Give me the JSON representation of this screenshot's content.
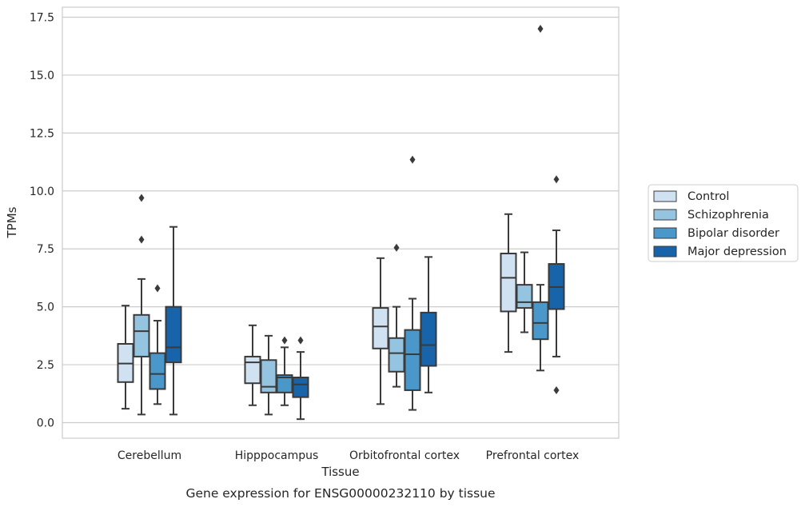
{
  "chart_data": {
    "type": "box",
    "title": "",
    "caption": "Gene expression for ENSG00000232110 by tissue",
    "xlabel": "Tissue",
    "ylabel": "TPMs",
    "ylim": [
      -0.6,
      17.8
    ],
    "yticks": [
      "0.0",
      "2.5",
      "5.0",
      "7.5",
      "10.0",
      "12.5",
      "15.0",
      "17.5"
    ],
    "grid": "horizontal",
    "legend_position": "right",
    "categories": [
      "Cerebellum",
      "Hipppocampus",
      "Orbitofrontal cortex",
      "Prefrontal cortex"
    ],
    "series": [
      {
        "name": "Control",
        "color": "#d0e1f2",
        "boxes": [
          {
            "whislo": 0.6,
            "q1": 1.75,
            "med": 2.55,
            "q3": 3.4,
            "whishi": 5.05,
            "fliers": []
          },
          {
            "whislo": 0.75,
            "q1": 1.7,
            "med": 2.6,
            "q3": 2.85,
            "whishi": 4.2,
            "fliers": []
          },
          {
            "whislo": 0.8,
            "q1": 3.2,
            "med": 4.15,
            "q3": 4.95,
            "whishi": 7.1,
            "fliers": []
          },
          {
            "whislo": 3.05,
            "q1": 4.8,
            "med": 6.25,
            "q3": 7.3,
            "whishi": 9.0,
            "fliers": []
          }
        ]
      },
      {
        "name": "Schizophrenia",
        "color": "#94c4df",
        "boxes": [
          {
            "whislo": 0.35,
            "q1": 2.85,
            "med": 3.95,
            "q3": 4.65,
            "whishi": 6.2,
            "fliers": [
              7.9,
              9.7
            ]
          },
          {
            "whislo": 0.35,
            "q1": 1.3,
            "med": 1.55,
            "q3": 2.7,
            "whishi": 3.75,
            "fliers": []
          },
          {
            "whislo": 1.55,
            "q1": 2.2,
            "med": 3.0,
            "q3": 3.65,
            "whishi": 5.0,
            "fliers": [
              7.55
            ]
          },
          {
            "whislo": 3.9,
            "q1": 4.95,
            "med": 5.2,
            "q3": 5.95,
            "whishi": 7.35,
            "fliers": []
          }
        ]
      },
      {
        "name": "Bipolar disorder",
        "color": "#4a98c9",
        "boxes": [
          {
            "whislo": 0.8,
            "q1": 1.45,
            "med": 2.1,
            "q3": 3.0,
            "whishi": 4.4,
            "fliers": [
              5.8
            ]
          },
          {
            "whislo": 0.75,
            "q1": 1.3,
            "med": 1.95,
            "q3": 2.05,
            "whishi": 3.25,
            "fliers": [
              3.55
            ]
          },
          {
            "whislo": 0.55,
            "q1": 1.4,
            "med": 2.95,
            "q3": 4.0,
            "whishi": 5.35,
            "fliers": [
              11.35
            ]
          },
          {
            "whislo": 2.25,
            "q1": 3.6,
            "med": 4.3,
            "q3": 5.2,
            "whishi": 5.95,
            "fliers": [
              17.0
            ]
          }
        ]
      },
      {
        "name": "Major depression",
        "color": "#1764ab",
        "boxes": [
          {
            "whislo": 0.35,
            "q1": 2.6,
            "med": 3.25,
            "q3": 5.0,
            "whishi": 8.45,
            "fliers": []
          },
          {
            "whislo": 0.15,
            "q1": 1.1,
            "med": 1.65,
            "q3": 1.95,
            "whishi": 3.05,
            "fliers": [
              3.55
            ]
          },
          {
            "whislo": 1.3,
            "q1": 2.45,
            "med": 3.35,
            "q3": 4.75,
            "whishi": 7.15,
            "fliers": []
          },
          {
            "whislo": 2.85,
            "q1": 4.9,
            "med": 5.85,
            "q3": 6.85,
            "whishi": 8.3,
            "fliers": [
              1.4,
              10.5
            ]
          }
        ]
      }
    ]
  }
}
